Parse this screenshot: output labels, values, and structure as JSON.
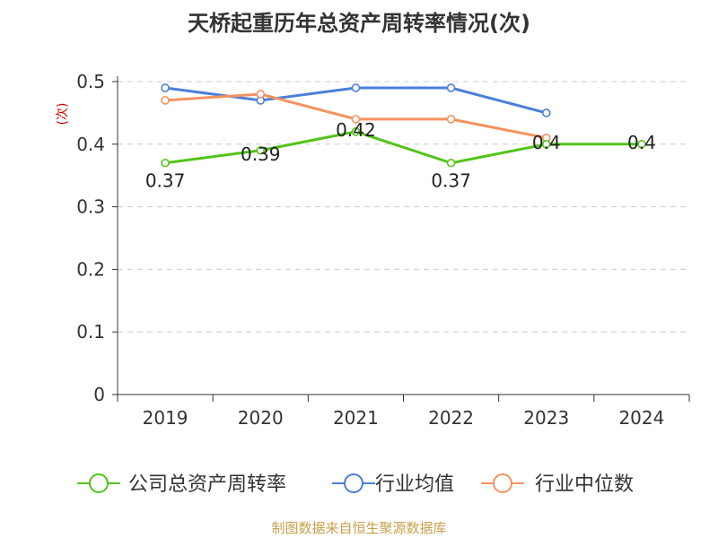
{
  "chart_data": {
    "type": "line",
    "title": "天桥起重历年总资产周转率情况(次)",
    "ylabel": "(次)",
    "xlabel": "",
    "categories": [
      "2019",
      "2020",
      "2021",
      "2022",
      "2023",
      "2024"
    ],
    "ylim": [
      0,
      0.5
    ],
    "yticks": [
      "0",
      "0.1",
      "0.2",
      "0.3",
      "0.4",
      "0.5"
    ],
    "grid": true,
    "legend_position": "bottom",
    "series": [
      {
        "name": "公司总资产周转率",
        "values": [
          0.37,
          0.39,
          0.42,
          0.37,
          0.4,
          0.4
        ],
        "labels": [
          "0.37",
          "0.39",
          "0.42",
          "0.37",
          "0.4",
          "0.4"
        ],
        "color": "#52c41a"
      },
      {
        "name": "行业均值",
        "values": [
          0.49,
          0.47,
          0.49,
          0.49,
          0.45,
          null
        ],
        "color": "#4a7fd9"
      },
      {
        "name": "行业中位数",
        "values": [
          0.47,
          0.48,
          0.44,
          0.44,
          0.41,
          null
        ],
        "color": "#f5925e"
      }
    ]
  },
  "source": "制图数据来自恒生聚源数据库",
  "colors": {
    "ylabel": "#cc0000",
    "source": "#c8a04a",
    "grid": "#cccccc",
    "axis": "#333333"
  }
}
